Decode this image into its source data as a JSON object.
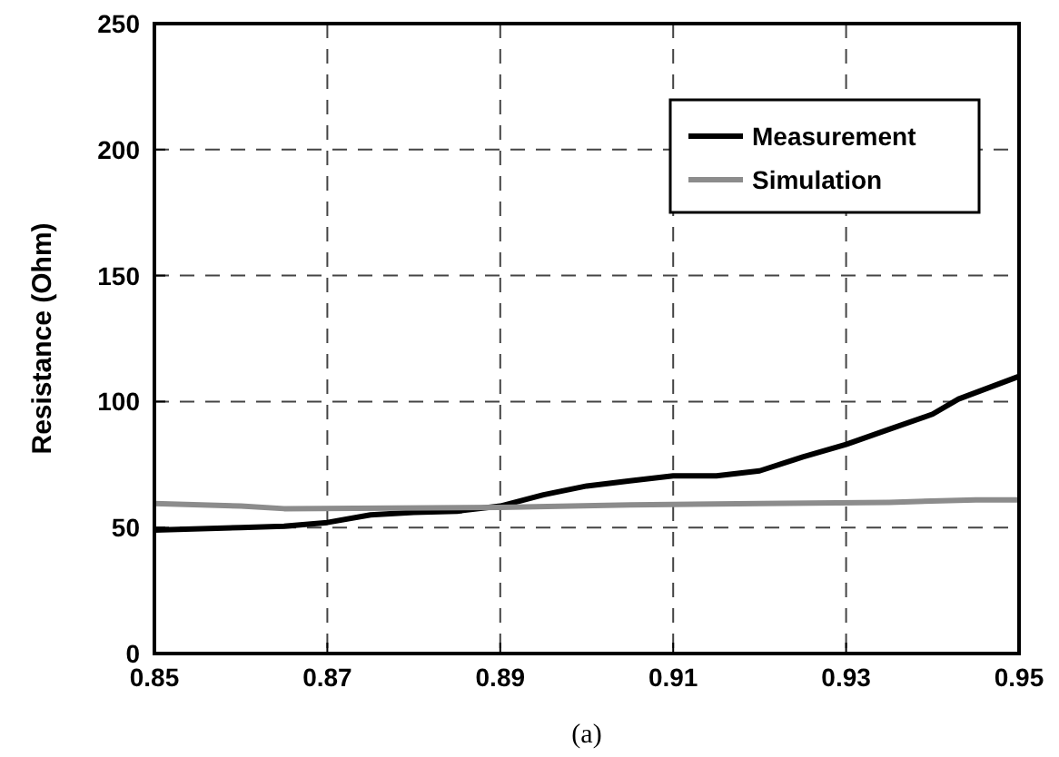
{
  "chart_data": {
    "type": "line",
    "ylabel": "Resistance (Ohm)",
    "annotations": [
      "(a)"
    ],
    "xlim": [
      0.85,
      0.95
    ],
    "xticks": [
      0.85,
      0.87,
      0.89,
      0.91,
      0.93,
      0.95
    ],
    "ylim": [
      0,
      250
    ],
    "yticks": [
      0,
      50,
      100,
      150,
      200,
      250
    ],
    "grid": true,
    "legend": "top right",
    "line_style": "solid",
    "marker": "none",
    "series": [
      {
        "name": "Measurement",
        "color": "#000000",
        "x": [
          0.85,
          0.86,
          0.865,
          0.87,
          0.875,
          0.88,
          0.885,
          0.89,
          0.895,
          0.9,
          0.905,
          0.91,
          0.915,
          0.92,
          0.925,
          0.93,
          0.935,
          0.94,
          0.943,
          0.95
        ],
        "values": [
          49,
          50,
          50.5,
          52,
          55,
          56,
          56.5,
          58.5,
          63,
          66.5,
          68.5,
          70.5,
          70.5,
          72.5,
          78,
          83,
          89,
          95,
          101,
          110
        ]
      },
      {
        "name": "Simulation",
        "color": "#8c8c8c",
        "x": [
          0.85,
          0.86,
          0.865,
          0.89,
          0.905,
          0.92,
          0.935,
          0.945,
          0.95
        ],
        "values": [
          59.5,
          58.5,
          57.5,
          58,
          59,
          59.5,
          60,
          61,
          61
        ]
      }
    ]
  }
}
